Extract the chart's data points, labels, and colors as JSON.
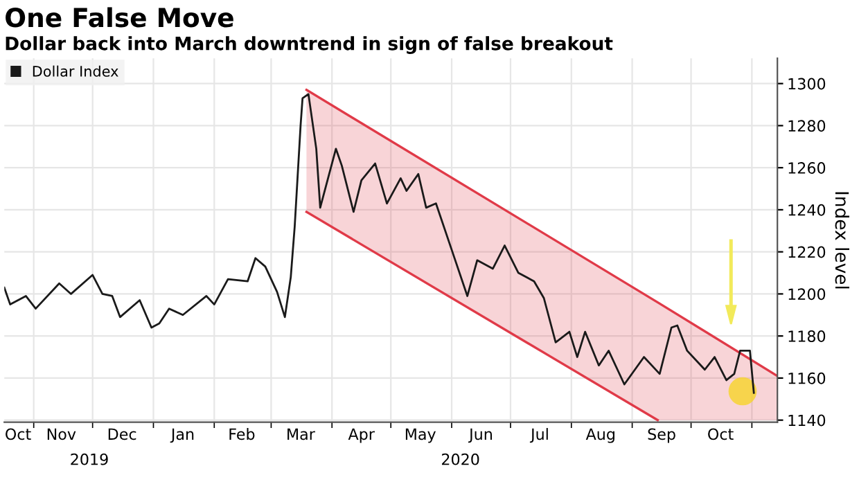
{
  "chart_data": {
    "type": "line",
    "title": "One False Move",
    "subtitle": "Dollar back into March downtrend in sign of false breakout",
    "ylabel": "Index level",
    "annotations": [
      "2019",
      "2020"
    ],
    "series": [
      {
        "name": "Dollar Index",
        "color": "#1a1a1a",
        "x": [
          "2019-10-17",
          "2019-10-20",
          "2019-10-28",
          "2019-11-02",
          "2019-11-14",
          "2019-11-20",
          "2019-12-01",
          "2019-12-06",
          "2019-12-11",
          "2019-12-15",
          "2019-12-25",
          "2019-12-31",
          "2020-01-04",
          "2020-01-09",
          "2020-01-16",
          "2020-01-28",
          "2020-02-01",
          "2020-02-08",
          "2020-02-18",
          "2020-02-22",
          "2020-02-27",
          "2020-03-04",
          "2020-03-08",
          "2020-03-11",
          "2020-03-13",
          "2020-03-16",
          "2020-03-17",
          "2020-03-20",
          "2020-03-24",
          "2020-03-26",
          "2020-04-03",
          "2020-04-06",
          "2020-04-12",
          "2020-04-16",
          "2020-04-23",
          "2020-04-29",
          "2020-05-06",
          "2020-05-09",
          "2020-05-15",
          "2020-05-19",
          "2020-05-24",
          "2020-06-01",
          "2020-06-09",
          "2020-06-14",
          "2020-06-22",
          "2020-06-28",
          "2020-07-05",
          "2020-07-13",
          "2020-07-18",
          "2020-07-24",
          "2020-07-31",
          "2020-08-04",
          "2020-08-08",
          "2020-08-15",
          "2020-08-20",
          "2020-08-28",
          "2020-09-07",
          "2020-09-15",
          "2020-09-21",
          "2020-09-24",
          "2020-09-29",
          "2020-10-08",
          "2020-10-13",
          "2020-10-19",
          "2020-10-23",
          "2020-10-26",
          "2020-10-31",
          "2020-11-02"
        ],
        "values": [
          1203,
          1195,
          1199,
          1193,
          1205,
          1200,
          1209,
          1200,
          1199,
          1189,
          1197,
          1184,
          1186,
          1193,
          1190,
          1199,
          1195,
          1207,
          1206,
          1217,
          1213,
          1201,
          1189,
          1208,
          1232,
          1280,
          1293,
          1295,
          1269,
          1241,
          1269,
          1261,
          1239,
          1254,
          1262,
          1243,
          1255,
          1249,
          1257,
          1241,
          1243,
          1221,
          1199,
          1216,
          1212,
          1223,
          1210,
          1206,
          1198,
          1177,
          1182,
          1170,
          1182,
          1166,
          1173,
          1157,
          1170,
          1162,
          1184,
          1185,
          1173,
          1164,
          1170,
          1159,
          1162,
          1173,
          1173,
          1153
        ]
      },
      {
        "color": "#e03a48",
        "x": [
          "2020-03-19",
          "2020-09-14",
          "2020-11-14"
        ],
        "values": [
          1297,
          1196,
          1161
        ],
        "lower": [
          1239,
          1140,
          1140
        ],
        "upper": [
          1297,
          1196,
          1161
        ]
      },
      {
        "color": "#e03a48",
        "x": [
          "2020-03-19",
          "2020-09-14"
        ],
        "values": [
          1239,
          1140
        ]
      }
    ],
    "xlim": [
      "2019-10-17",
      "2020-11-14"
    ],
    "ylim": [
      1139,
      1312
    ],
    "xticks": [
      {
        "value": "2019-10-24",
        "label": "Oct"
      },
      {
        "value": "2019-11-01",
        "label": null
      },
      {
        "value": "2019-11-15",
        "label": "Nov"
      },
      {
        "value": "2019-12-01",
        "label": null
      },
      {
        "value": "2019-12-16",
        "label": "Dec"
      },
      {
        "value": "2020-01-01",
        "label": null
      },
      {
        "value": "2020-01-16",
        "label": "Jan"
      },
      {
        "value": "2020-02-01",
        "label": null
      },
      {
        "value": "2020-02-15",
        "label": "Feb"
      },
      {
        "value": "2020-03-01",
        "label": null
      },
      {
        "value": "2020-03-16",
        "label": "Mar"
      },
      {
        "value": "2020-04-01",
        "label": null
      },
      {
        "value": "2020-04-16",
        "label": "Apr"
      },
      {
        "value": "2020-05-01",
        "label": null
      },
      {
        "value": "2020-05-16",
        "label": "May"
      },
      {
        "value": "2020-06-01",
        "label": null
      },
      {
        "value": "2020-06-16",
        "label": "Jun"
      },
      {
        "value": "2020-07-01",
        "label": null
      },
      {
        "value": "2020-07-16",
        "label": "Jul"
      },
      {
        "value": "2020-08-01",
        "label": null
      },
      {
        "value": "2020-08-16",
        "label": "Aug"
      },
      {
        "value": "2020-09-01",
        "label": null
      },
      {
        "value": "2020-09-16",
        "label": "Sep"
      },
      {
        "value": "2020-10-01",
        "label": null
      },
      {
        "value": "2020-10-16",
        "label": "Oct"
      },
      {
        "value": "2020-11-01",
        "label": null
      }
    ],
    "yticks": [
      1140,
      1160,
      1180,
      1200,
      1220,
      1240,
      1260,
      1280,
      1300
    ],
    "grid": true,
    "legend": "top left",
    "marker": "none",
    "line_style": "solid"
  }
}
